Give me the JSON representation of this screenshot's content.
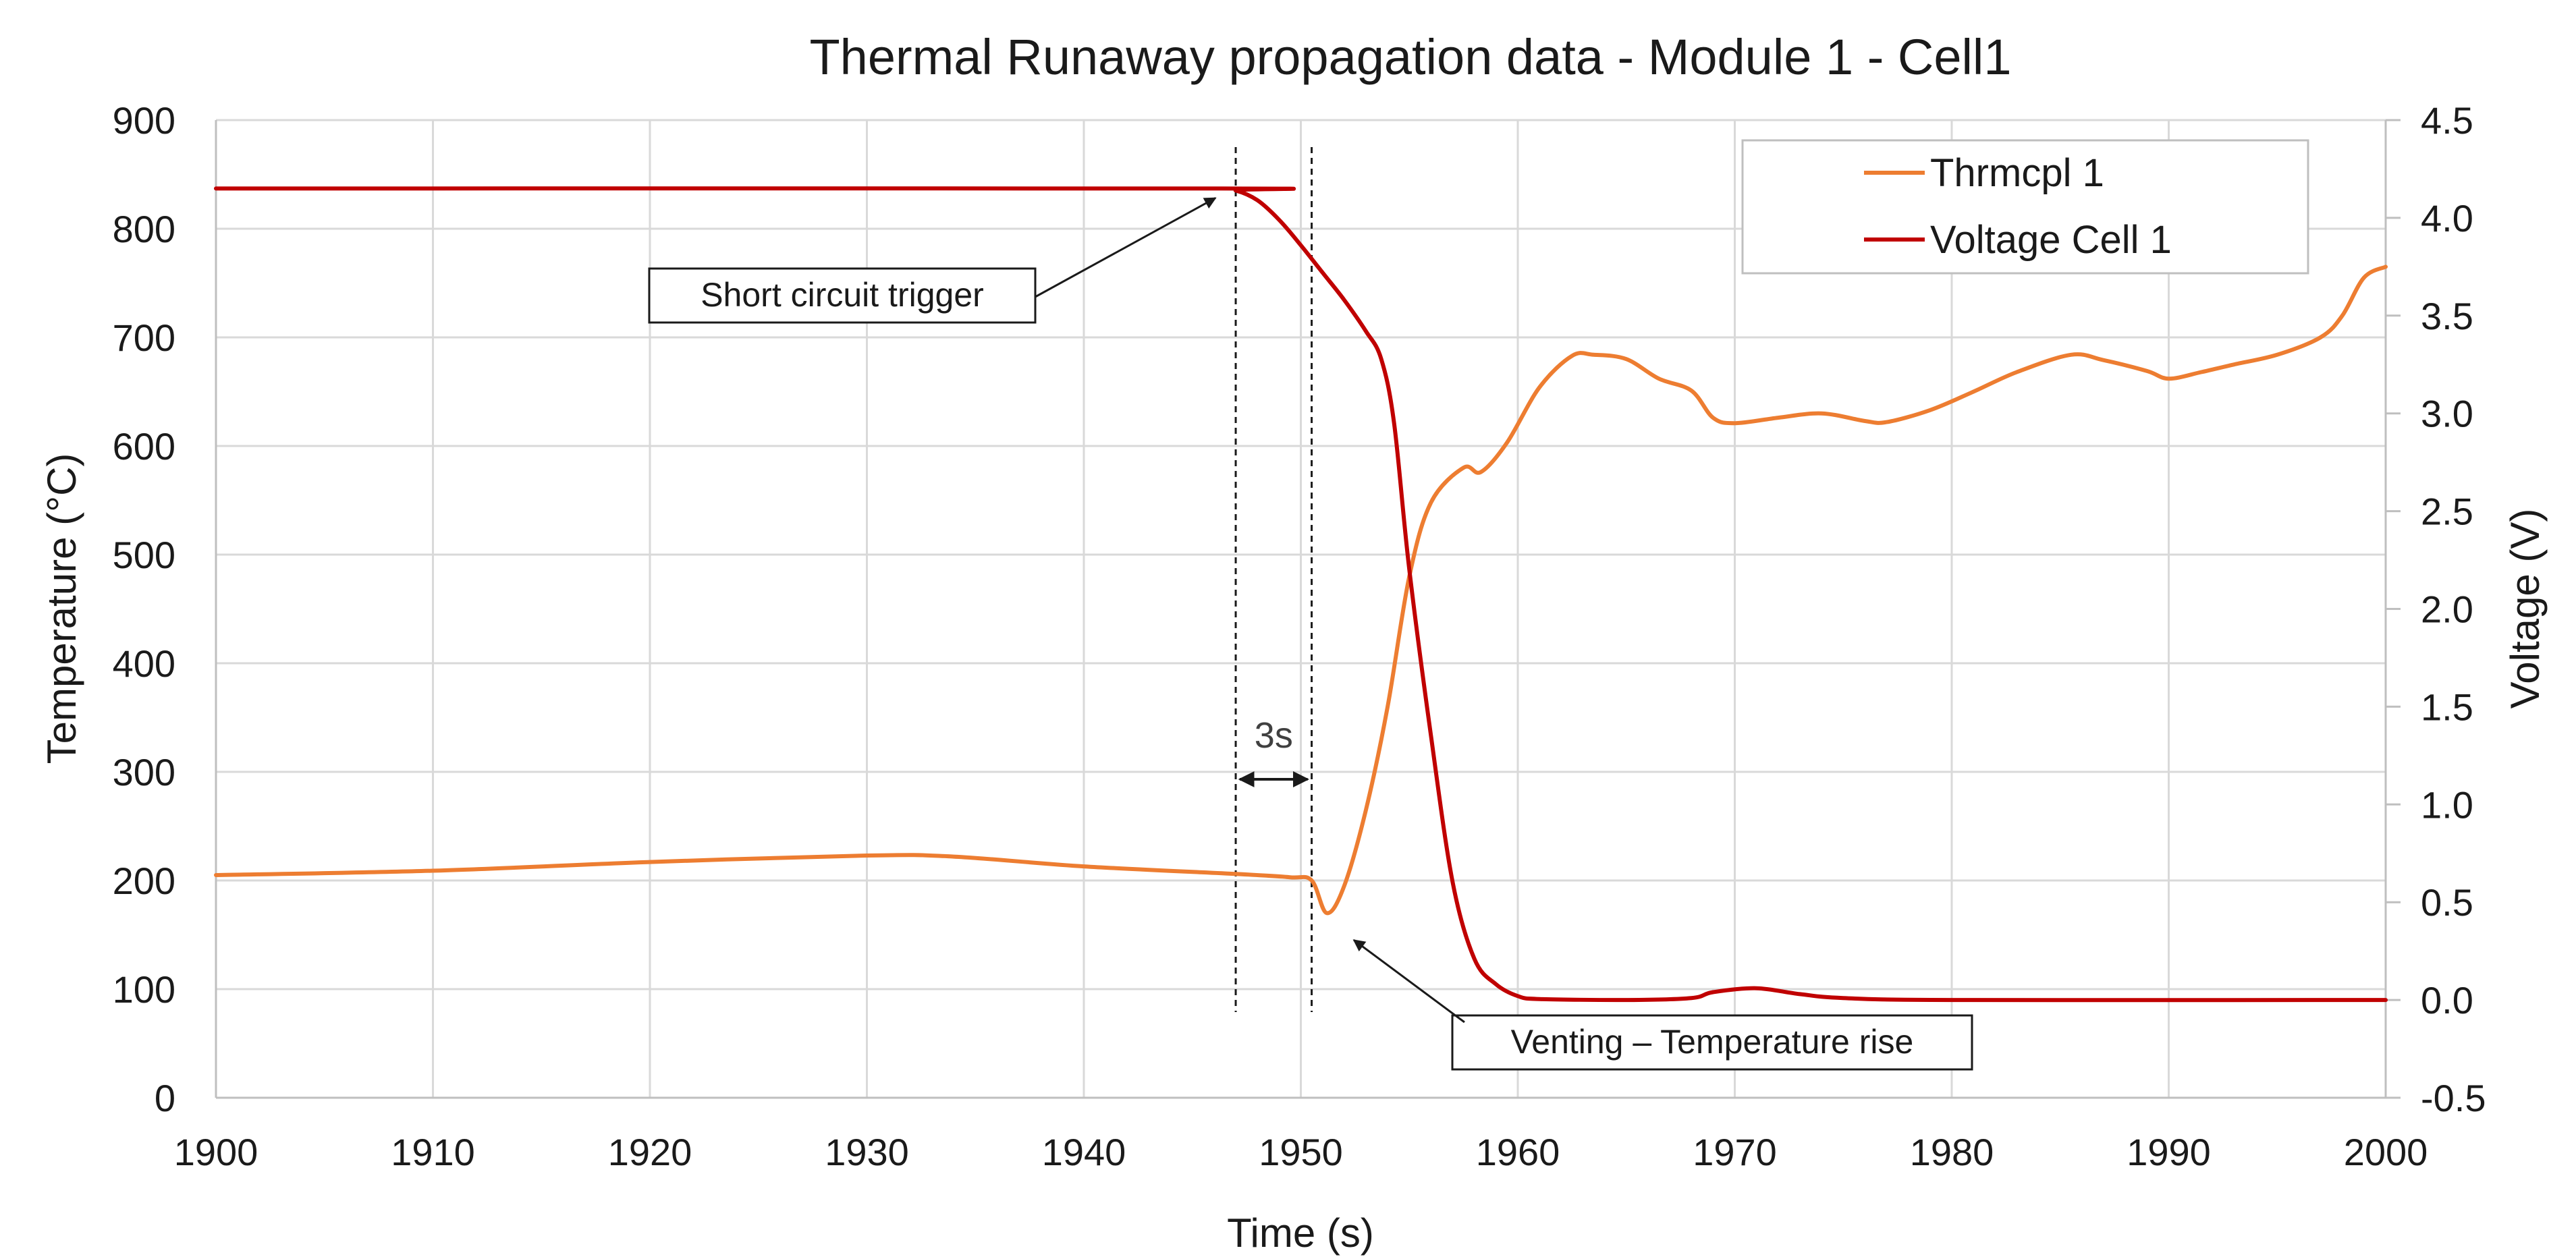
{
  "colors": {
    "thermocouple": "#ED7D31",
    "voltage": "#C00000",
    "grid": "#d9d9d9",
    "text": "#1a1a1a"
  },
  "chart_data": {
    "type": "line",
    "title": "Thermal Runaway propagation data  - Module 1 - Cell1",
    "xlabel": "Time (s)",
    "ylabel": "Temperature (°C)",
    "y2label": "Voltage (V)",
    "xlim": [
      1900,
      2000
    ],
    "ylim": [
      0,
      900
    ],
    "y2lim": [
      -0.5,
      4.5
    ],
    "x_ticks": [
      "1900",
      "1910",
      "1920",
      "1930",
      "1940",
      "1950",
      "1960",
      "1970",
      "1980",
      "1990",
      "2000"
    ],
    "y_ticks": [
      "0",
      "100",
      "200",
      "300",
      "400",
      "500",
      "600",
      "700",
      "800",
      "900"
    ],
    "y2_ticks": [
      "-0.5",
      "0.0",
      "0.5",
      "1.0",
      "1.5",
      "2.0",
      "2.5",
      "3.0",
      "3.5",
      "4.0",
      "4.5"
    ],
    "grid": true,
    "legend_position": "top-right",
    "series": [
      {
        "name": "Thrmcpl 1",
        "axis": "left",
        "x": [
          1900,
          1910,
          1920,
          1930,
          1934,
          1940,
          1947,
          1949.5,
          1950.5,
          1951.2,
          1952,
          1953,
          1954,
          1955,
          1956,
          1957.5,
          1958.3,
          1959.5,
          1961,
          1962.5,
          1963.5,
          1965,
          1966.5,
          1968,
          1969,
          1970,
          1972,
          1974,
          1976,
          1977,
          1979,
          1981,
          1983,
          1985.5,
          1987,
          1989,
          1990,
          1991.5,
          1993,
          1995,
          1997,
          1998,
          1999,
          2000
        ],
        "values": [
          205,
          209,
          217,
          223,
          222,
          213,
          206,
          203,
          200,
          170,
          195,
          265,
          360,
          480,
          548,
          580,
          576,
          603,
          654,
          683,
          684,
          680,
          662,
          651,
          626,
          621,
          626,
          630,
          623,
          622,
          633,
          650,
          668,
          684,
          679,
          669,
          662,
          668,
          675,
          684,
          700,
          720,
          755,
          765
        ]
      },
      {
        "name": "Voltage Cell 1",
        "axis": "right",
        "x": [
          1900,
          1946,
          1947,
          1948,
          1949,
          1950,
          1951,
          1952,
          1953,
          1953.7,
          1954.3,
          1955,
          1956,
          1957,
          1958,
          1959,
          1960,
          1961,
          1965,
          1968,
          1969,
          1971,
          1973,
          1975,
          1980,
          2000
        ],
        "values": [
          4.15,
          4.15,
          4.14,
          4.09,
          3.99,
          3.86,
          3.72,
          3.58,
          3.42,
          3.28,
          2.95,
          2.2,
          1.35,
          0.6,
          0.21,
          0.08,
          0.02,
          0.005,
          0.0,
          0.01,
          0.04,
          0.06,
          0.03,
          0.01,
          0.0,
          0.0
        ]
      }
    ],
    "annotations": {
      "short_circuit": {
        "label": "Short circuit trigger",
        "x": 1947,
        "y2": 4.15
      },
      "venting": {
        "label": "Venting – Temperature rise",
        "x": 1951.2,
        "y": 170
      },
      "interval": {
        "label": "3s",
        "x_start": 1947,
        "x_end": 1950.5
      }
    }
  }
}
